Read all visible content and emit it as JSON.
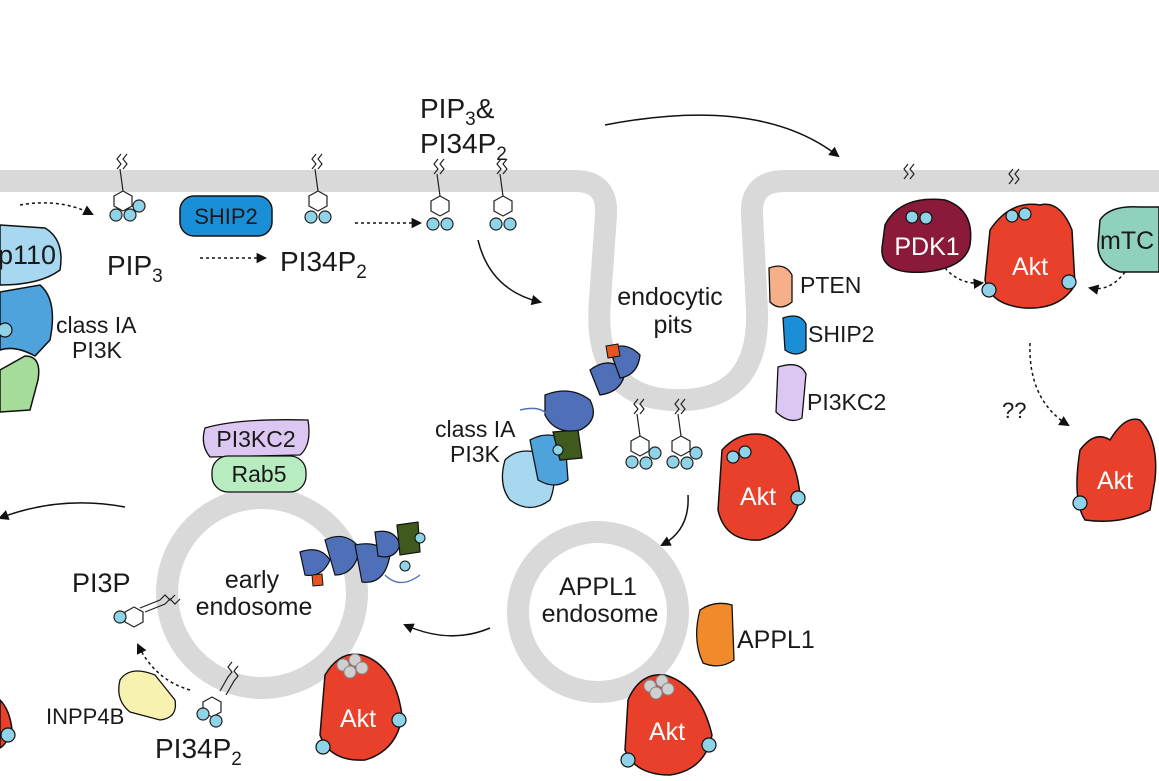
{
  "labels": {
    "p110": "p110",
    "class_ia_left_1": "class IA",
    "class_ia_left_2": "PI3K",
    "pip3": "PIP",
    "pip3_sub": "3",
    "ship2_top": "SHIP2",
    "pi34p2_top": "PI34P",
    "pi34p2_top_sub": "2",
    "pip3_and_1": "PIP",
    "pip3_and_sub": "3",
    "pip3_and_amp": "&",
    "pip3_and_2": "PI34P",
    "pip3_and_2_sub": "2",
    "endocytic_1": "endocytic",
    "endocytic_2": "pits",
    "pten": "PTEN",
    "ship2_pit": "SHIP2",
    "pi3kc2_pit": "PI3KC2",
    "pdk1": "PDK1",
    "akt_mem": "Akt",
    "mtor": "mTC",
    "question": "??",
    "akt_cyto": "Akt",
    "class_ia_pit_1": "class IA",
    "class_ia_pit_2": "PI3K",
    "akt_pit": "Akt",
    "pi3kc2_endo": "PI3KC2",
    "rab5": "Rab5",
    "early_1": "early",
    "early_2": "endosome",
    "pi3p": "PI3P",
    "inpp4b": "INPP4B",
    "pi34p2_bottom": "PI34P",
    "pi34p2_bottom_sub": "2",
    "akt_early": "Akt",
    "appl1_endo_1": "APPL1",
    "appl1_endo_2": "endosome",
    "appl1": "APPL1",
    "akt_appl1": "Akt"
  },
  "colors": {
    "membrane": "#d9d9d9",
    "akt": "#e8402a",
    "pdk1": "#8b1a3a",
    "mtor": "#8fd0bf",
    "ship2": "#1a8fd8",
    "pten": "#f5b08a",
    "pi3kc2": "#dcc6f2",
    "rab5": "#b7ecc0",
    "appl1": "#f08a2a",
    "inpp4b": "#f8f2b0",
    "pi3k_light": "#a7d8f0",
    "pi3k_mid": "#4ea3dc",
    "pi3k_green": "#a6dc9a",
    "lipid_head": "#8fd3e8",
    "pi3k_blue": "#4f6fb8",
    "pi3k_dark_green": "#3f5a1c",
    "pi3k_orange": "#e8541f",
    "grey_beads": "#cfcfcf"
  }
}
